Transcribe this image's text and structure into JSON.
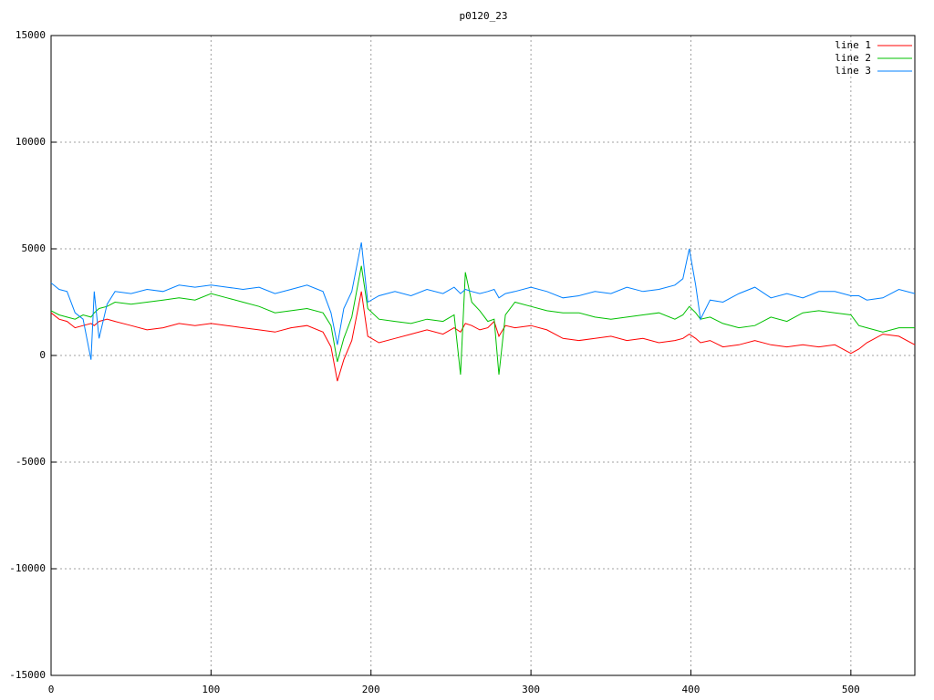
{
  "chart_data": {
    "type": "line",
    "title": "p0120_23",
    "x": [
      0,
      5,
      10,
      15,
      20,
      25,
      27,
      30,
      35,
      40,
      50,
      60,
      70,
      80,
      90,
      100,
      110,
      120,
      130,
      140,
      150,
      160,
      170,
      175,
      179,
      183,
      188,
      194,
      198,
      205,
      215,
      225,
      235,
      245,
      252,
      256,
      259,
      263,
      268,
      273,
      277,
      280,
      284,
      290,
      300,
      310,
      320,
      330,
      340,
      350,
      360,
      370,
      380,
      390,
      395,
      399,
      403,
      406,
      412,
      420,
      430,
      440,
      450,
      460,
      470,
      480,
      490,
      500,
      505,
      510,
      520,
      530,
      540
    ],
    "series": [
      {
        "name": "line 1",
        "color": "#ff0000",
        "values": [
          2000,
          1700,
          1600,
          1300,
          1400,
          1500,
          1400,
          1600,
          1700,
          1600,
          1400,
          1200,
          1300,
          1500,
          1400,
          1500,
          1400,
          1300,
          1200,
          1100,
          1300,
          1400,
          1100,
          400,
          -1200,
          -200,
          700,
          3000,
          900,
          600,
          800,
          1000,
          1200,
          1000,
          1300,
          1100,
          1500,
          1400,
          1200,
          1300,
          1600,
          900,
          1400,
          1300,
          1400,
          1200,
          800,
          700,
          800,
          900,
          700,
          800,
          600,
          700,
          800,
          1000,
          800,
          600,
          700,
          400,
          500,
          700,
          500,
          400,
          500,
          400,
          500,
          100,
          300,
          600,
          1000,
          900,
          500
        ]
      },
      {
        "name": "line 2",
        "color": "#00c000",
        "values": [
          2100,
          1900,
          1800,
          1700,
          1900,
          1800,
          2000,
          2200,
          2300,
          2500,
          2400,
          2500,
          2600,
          2700,
          2600,
          2900,
          2700,
          2500,
          2300,
          2000,
          2100,
          2200,
          2000,
          1400,
          -300,
          800,
          1800,
          4200,
          2200,
          1700,
          1600,
          1500,
          1700,
          1600,
          1900,
          -900,
          3900,
          2500,
          2100,
          1600,
          1700,
          -900,
          1900,
          2500,
          2300,
          2100,
          2000,
          2000,
          1800,
          1700,
          1800,
          1900,
          2000,
          1700,
          1900,
          2300,
          2000,
          1700,
          1800,
          1500,
          1300,
          1400,
          1800,
          1600,
          2000,
          2100,
          2000,
          1900,
          1400,
          1300,
          1100,
          1300,
          1300
        ]
      },
      {
        "name": "line 3",
        "color": "#0080ff",
        "values": [
          3400,
          3100,
          3000,
          2000,
          1700,
          -200,
          3000,
          800,
          2400,
          3000,
          2900,
          3100,
          3000,
          3300,
          3200,
          3300,
          3200,
          3100,
          3200,
          2900,
          3100,
          3300,
          3000,
          2000,
          500,
          2200,
          3000,
          5300,
          2500,
          2800,
          3000,
          2800,
          3100,
          2900,
          3200,
          2900,
          3100,
          3000,
          2900,
          3000,
          3100,
          2700,
          2900,
          3000,
          3200,
          3000,
          2700,
          2800,
          3000,
          2900,
          3200,
          3000,
          3100,
          3300,
          3600,
          5000,
          3300,
          1700,
          2600,
          2500,
          2900,
          3200,
          2700,
          2900,
          2700,
          3000,
          3000,
          2800,
          2800,
          2600,
          2700,
          3100,
          2900
        ]
      }
    ],
    "xlim": [
      0,
      540
    ],
    "ylim": [
      -15000,
      15000
    ],
    "xticks": [
      0,
      100,
      200,
      300,
      400,
      500
    ],
    "yticks": [
      -15000,
      -10000,
      -5000,
      0,
      5000,
      10000,
      15000
    ],
    "grid": true,
    "legend": "top-right"
  }
}
